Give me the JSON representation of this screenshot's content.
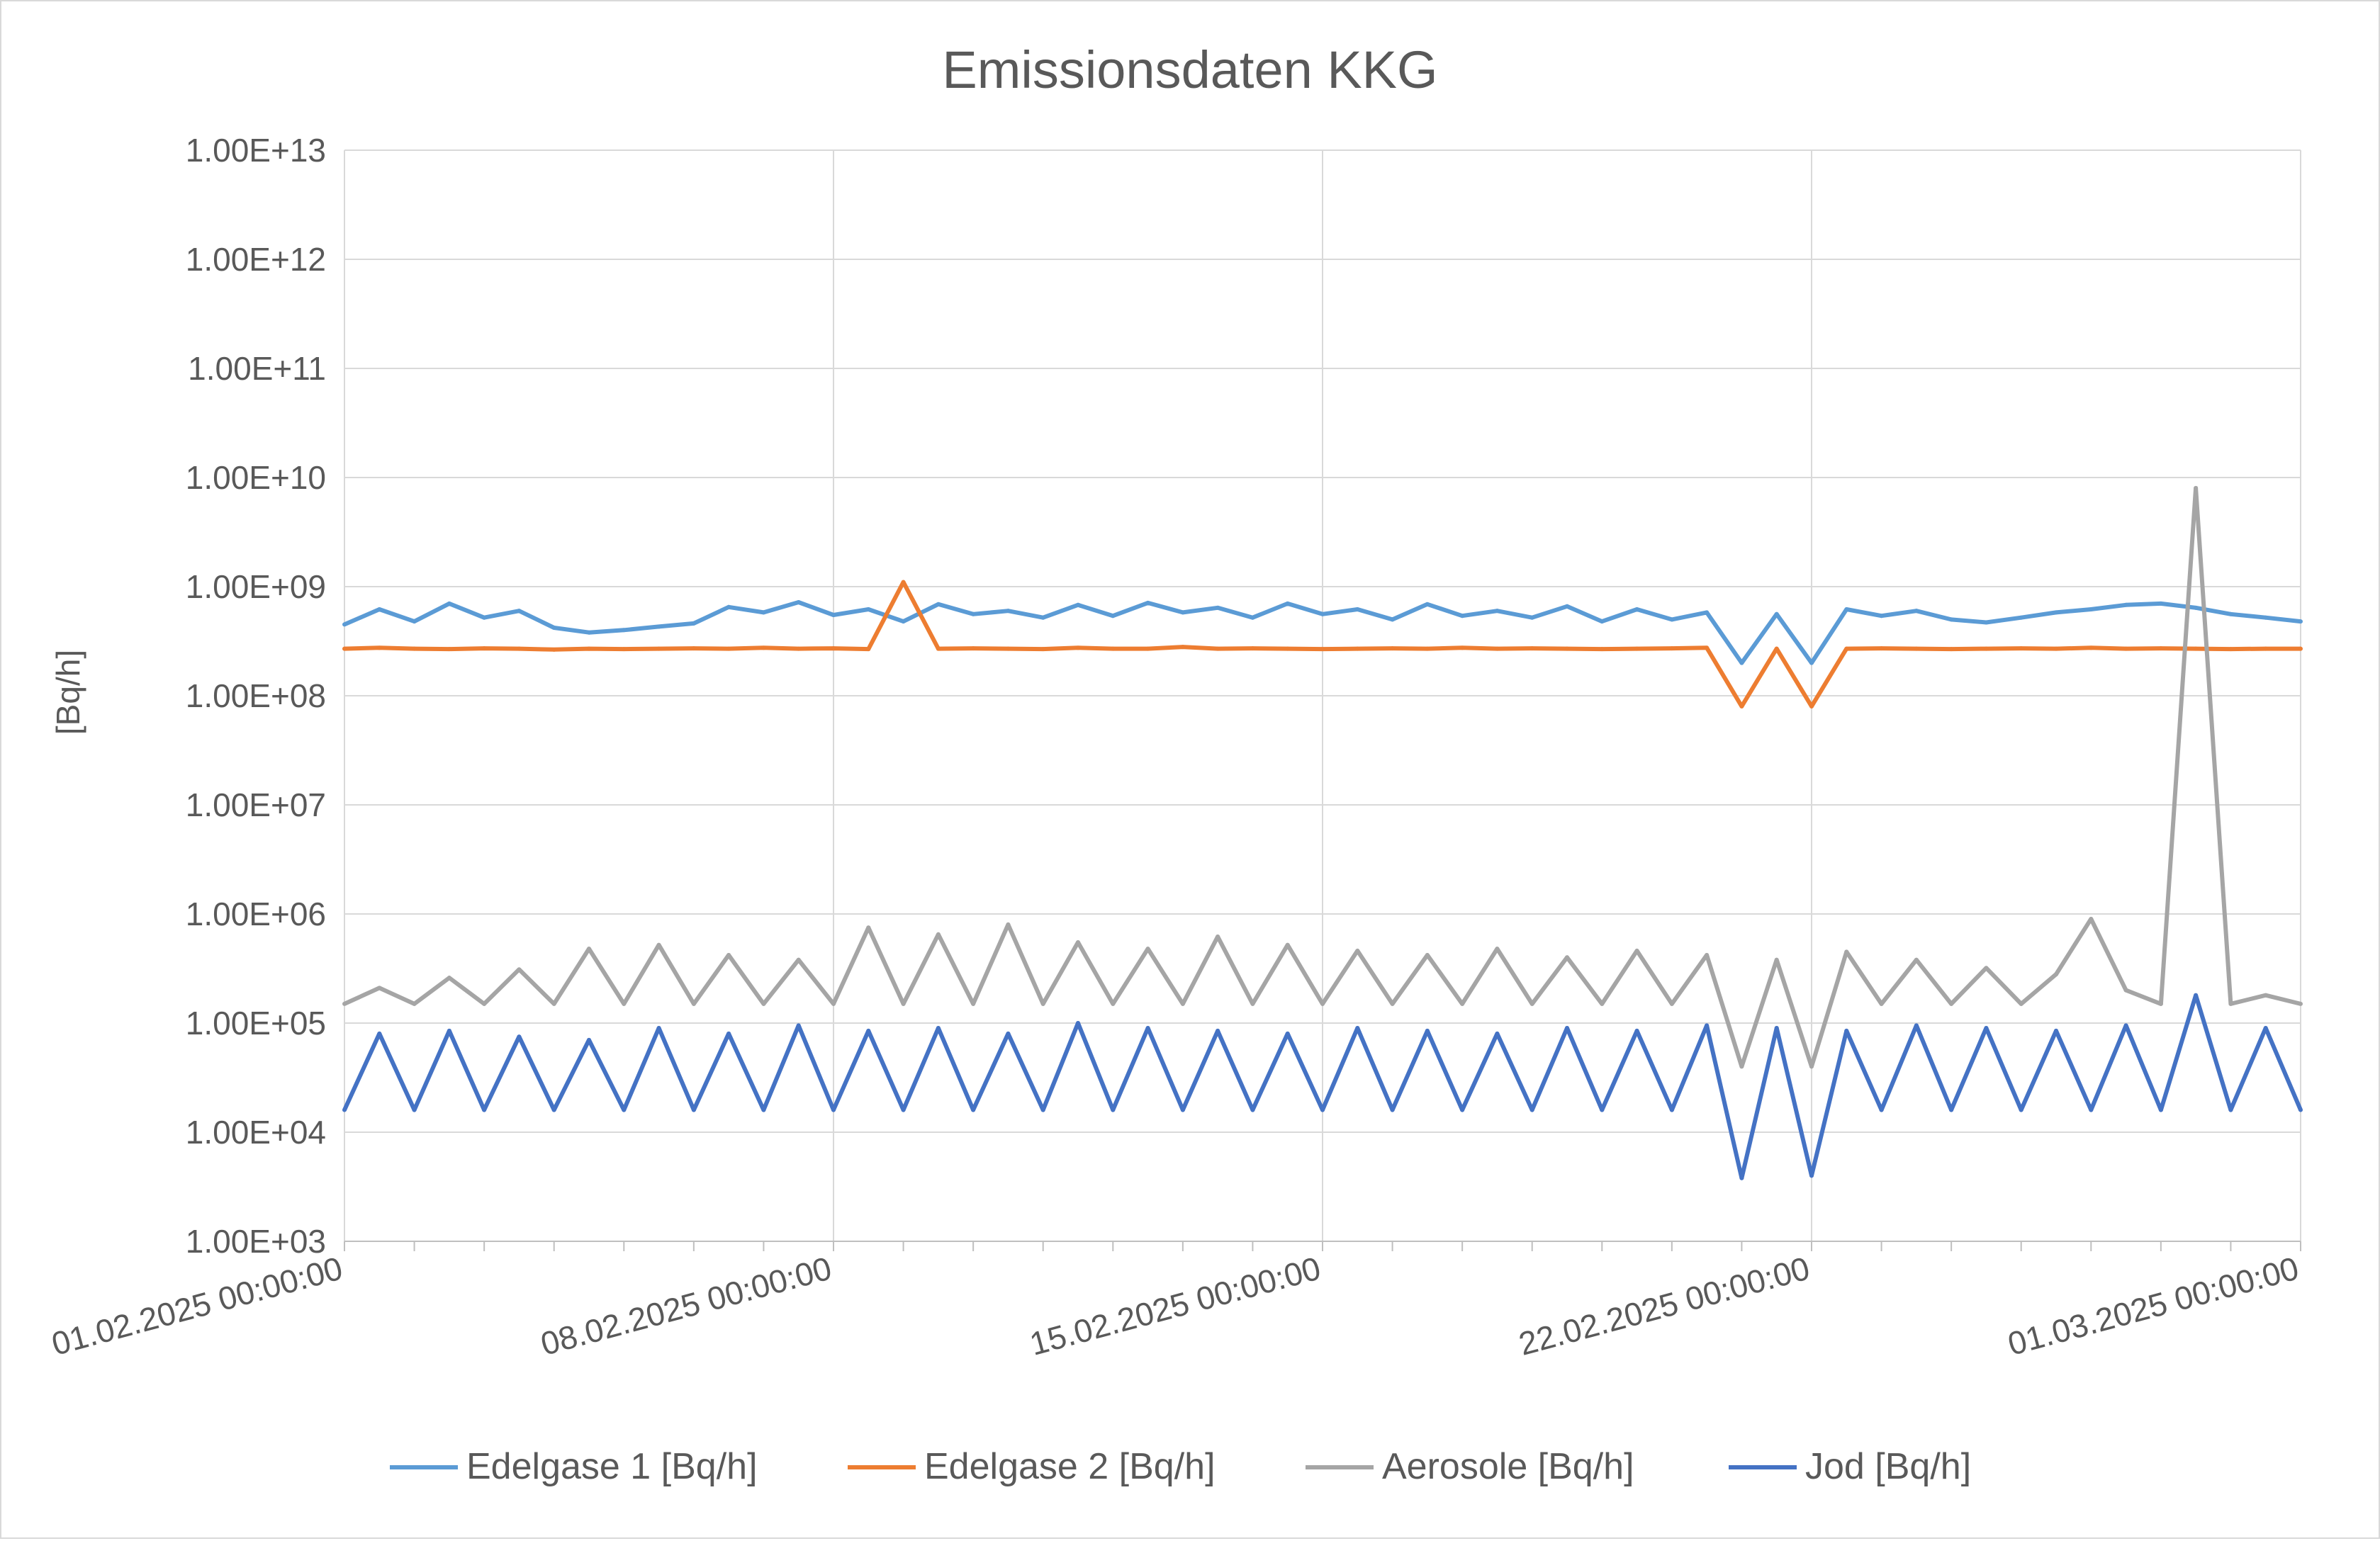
{
  "chart_data": {
    "type": "line",
    "title": "Emissionsdaten KKG",
    "ylabel": "[Bq/h]",
    "xlabel": "",
    "yscale": "log",
    "ylim": [
      1000,
      10000000000000
    ],
    "y_tick_labels": [
      "1.00E+03",
      "1.00E+04",
      "1.00E+05",
      "1.00E+06",
      "1.00E+07",
      "1.00E+08",
      "1.00E+09",
      "1.00E+10",
      "1.00E+11",
      "1.00E+12",
      "1.00E+13"
    ],
    "xlim": [
      "2025-02-01",
      "2025-03-01"
    ],
    "x_tick_labels": [
      "01.02.2025 00:00:00",
      "08.02.2025 00:00:00",
      "15.02.2025 00:00:00",
      "22.02.2025 00:00:00",
      "01.03.2025 00:00:00"
    ],
    "grid": true,
    "legend_position": "bottom",
    "x_unit": "date",
    "x": [
      "2025-02-01",
      "2025-02-01 12:00",
      "2025-02-02",
      "2025-02-02 12:00",
      "2025-02-03",
      "2025-02-03 12:00",
      "2025-02-04",
      "2025-02-04 12:00",
      "2025-02-05",
      "2025-02-05 12:00",
      "2025-02-06",
      "2025-02-06 12:00",
      "2025-02-07",
      "2025-02-07 12:00",
      "2025-02-08",
      "2025-02-08 12:00",
      "2025-02-09",
      "2025-02-09 12:00",
      "2025-02-10",
      "2025-02-10 12:00",
      "2025-02-11",
      "2025-02-11 12:00",
      "2025-02-12",
      "2025-02-12 12:00",
      "2025-02-13",
      "2025-02-13 12:00",
      "2025-02-14",
      "2025-02-14 12:00",
      "2025-02-15",
      "2025-02-15 12:00",
      "2025-02-16",
      "2025-02-16 12:00",
      "2025-02-17",
      "2025-02-17 12:00",
      "2025-02-18",
      "2025-02-18 12:00",
      "2025-02-19",
      "2025-02-19 12:00",
      "2025-02-20",
      "2025-02-20 12:00",
      "2025-02-21",
      "2025-02-21 12:00",
      "2025-02-22",
      "2025-02-22 12:00",
      "2025-02-23",
      "2025-02-23 12:00",
      "2025-02-24",
      "2025-02-24 12:00",
      "2025-02-25",
      "2025-02-25 12:00",
      "2025-02-26",
      "2025-02-26 12:00",
      "2025-02-27",
      "2025-02-27 12:00",
      "2025-02-28",
      "2025-02-28 12:00",
      "2025-03-01"
    ],
    "series": [
      {
        "name": "Edelgase 1 [Bq/h]",
        "color": "#5b9bd5",
        "values": [
          450000000,
          620000000,
          480000000,
          700000000,
          520000000,
          600000000,
          420000000,
          380000000,
          400000000,
          430000000,
          460000000,
          650000000,
          580000000,
          720000000,
          550000000,
          620000000,
          480000000,
          690000000,
          560000000,
          600000000,
          520000000,
          680000000,
          540000000,
          710000000,
          580000000,
          640000000,
          520000000,
          700000000,
          560000000,
          620000000,
          500000000,
          690000000,
          540000000,
          600000000,
          520000000,
          660000000,
          480000000,
          620000000,
          500000000,
          580000000,
          200000000,
          560000000,
          200000000,
          620000000,
          540000000,
          600000000,
          500000000,
          470000000,
          520000000,
          580000000,
          620000000,
          680000000,
          700000000,
          640000000,
          560000000,
          520000000,
          480000000
        ]
      },
      {
        "name": "Edelgase 2 [Bq/h]",
        "color": "#ed7d31",
        "values": [
          270000000,
          275000000,
          270000000,
          268000000,
          272000000,
          270000000,
          265000000,
          270000000,
          268000000,
          270000000,
          272000000,
          270000000,
          275000000,
          270000000,
          272000000,
          268000000,
          1100000000,
          270000000,
          272000000,
          270000000,
          268000000,
          275000000,
          270000000,
          270000000,
          280000000,
          270000000,
          272000000,
          270000000,
          268000000,
          270000000,
          272000000,
          270000000,
          275000000,
          270000000,
          272000000,
          270000000,
          268000000,
          270000000,
          272000000,
          275000000,
          80000000,
          270000000,
          80000000,
          270000000,
          272000000,
          270000000,
          268000000,
          270000000,
          272000000,
          270000000,
          275000000,
          270000000,
          272000000,
          270000000,
          268000000,
          270000000,
          270000000
        ]
      },
      {
        "name": "Aerosole [Bq/h]",
        "color": "#a5a5a5",
        "values": [
          150000,
          210000,
          150000,
          260000,
          150000,
          310000,
          150000,
          480000,
          150000,
          520000,
          150000,
          420000,
          150000,
          380000,
          150000,
          750000,
          150000,
          650000,
          150000,
          800000,
          150000,
          550000,
          150000,
          480000,
          150000,
          620000,
          150000,
          520000,
          150000,
          460000,
          150000,
          420000,
          150000,
          480000,
          150000,
          400000,
          150000,
          460000,
          150000,
          420000,
          40000,
          380000,
          40000,
          450000,
          150000,
          380000,
          150000,
          320000,
          150000,
          280000,
          900000,
          200000,
          150000,
          8000000000,
          150000,
          180000,
          150000
        ]
      },
      {
        "name": "Jod [Bq/h]",
        "color": "#4472c4",
        "values": [
          16000,
          80000,
          16000,
          85000,
          16000,
          75000,
          16000,
          70000,
          16000,
          90000,
          16000,
          80000,
          16000,
          95000,
          16000,
          85000,
          16000,
          90000,
          16000,
          80000,
          16000,
          100000,
          16000,
          90000,
          16000,
          85000,
          16000,
          80000,
          16000,
          90000,
          16000,
          85000,
          16000,
          80000,
          16000,
          90000,
          16000,
          85000,
          16000,
          95000,
          3800,
          90000,
          4000,
          85000,
          16000,
          95000,
          16000,
          90000,
          16000,
          85000,
          16000,
          95000,
          16000,
          180000,
          16000,
          90000,
          16000
        ]
      }
    ]
  }
}
